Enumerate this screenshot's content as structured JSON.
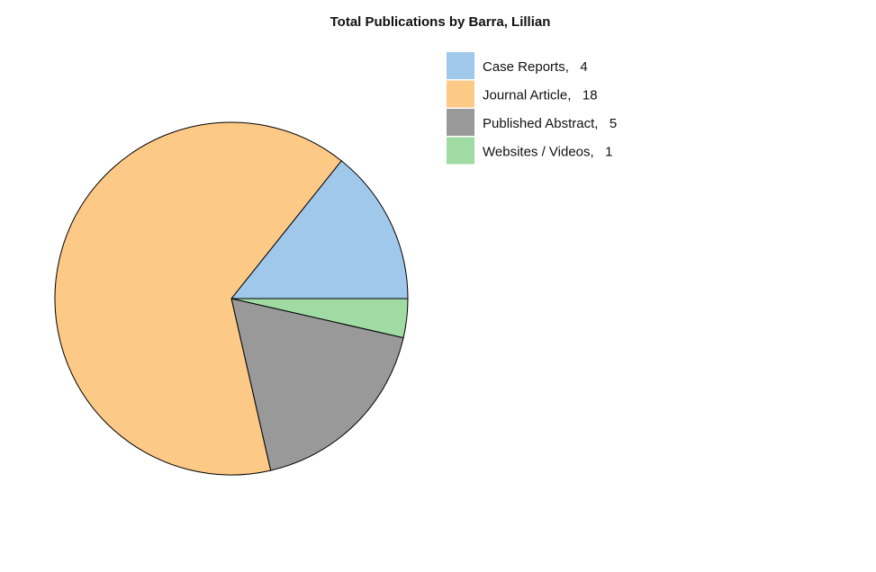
{
  "chart_data": {
    "type": "pie",
    "title": "Total Publications by Barra, Lillian",
    "legend_position": "top-right",
    "slices": [
      {
        "label": "Case Reports",
        "value": 4,
        "color": "#a0c8ea"
      },
      {
        "label": "Websites / Videos",
        "value": 1,
        "color": "#a0dba3"
      },
      {
        "label": "Published Abstract",
        "value": 5,
        "color": "#999999"
      },
      {
        "label": "Journal Article",
        "value": 18,
        "color": "#fdc986"
      }
    ],
    "legend": [
      {
        "label": "Case Reports",
        "value": "4",
        "color": "#a0c8ea"
      },
      {
        "label": "Journal Article",
        "value": "18",
        "color": "#fdc986"
      },
      {
        "label": "Published Abstract",
        "value": "5",
        "color": "#999999"
      },
      {
        "label": "Websites / Videos",
        "value": "1",
        "color": "#a0dba3"
      }
    ]
  }
}
